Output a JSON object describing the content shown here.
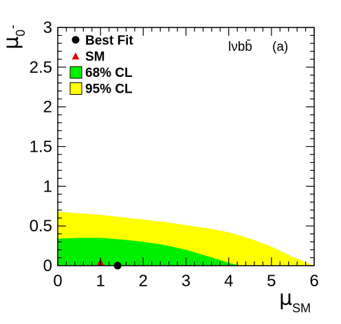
{
  "chart_data": {
    "type": "area",
    "x_range": [
      0,
      6
    ],
    "y_range": [
      0,
      3
    ],
    "xlabel": {
      "symbol": "μ",
      "subscript": "SM"
    },
    "ylabel": {
      "symbol": "μ",
      "subscript": "0",
      "superscript": "-"
    },
    "x_ticks": [
      0,
      1,
      2,
      3,
      4,
      5,
      6
    ],
    "x_tick_labels": [
      "0",
      "1",
      "2",
      "3",
      "4",
      "5",
      "6"
    ],
    "y_ticks": [
      0,
      0.5,
      1,
      1.5,
      2,
      2.5,
      3
    ],
    "y_tick_labels": [
      "0",
      "0.5",
      "1",
      "1.5",
      "2",
      "2.5",
      "3"
    ],
    "grid": false,
    "legend_placement": "top-left",
    "annotation": {
      "channel": "lνbb̄",
      "panel": "(a)"
    },
    "series": [
      {
        "name": "95% CL",
        "kind": "contour_region",
        "color": "#ffff00",
        "x": [
          0,
          0.5,
          1,
          1.5,
          2,
          2.5,
          3,
          3.5,
          4,
          4.5,
          5,
          5.5,
          6
        ],
        "y": [
          0.68,
          0.66,
          0.64,
          0.61,
          0.58,
          0.55,
          0.51,
          0.47,
          0.42,
          0.34,
          0.24,
          0.11,
          0.0
        ]
      },
      {
        "name": "68% CL",
        "kind": "contour_region",
        "color": "#00ee00",
        "x": [
          0,
          0.5,
          1,
          1.5,
          2,
          2.5,
          3,
          3.5,
          3.8,
          4.1,
          4.3
        ],
        "y": [
          0.34,
          0.35,
          0.35,
          0.33,
          0.3,
          0.26,
          0.2,
          0.12,
          0.07,
          0.02,
          0.0
        ]
      },
      {
        "name": "Best Fit",
        "kind": "marker",
        "marker": "circle",
        "color": "#000000",
        "x": 1.4,
        "y": 0.0
      },
      {
        "name": "SM",
        "kind": "marker",
        "marker": "triangle",
        "color": "#dd0000",
        "x": 1.0,
        "y": 0.0
      }
    ],
    "legend": [
      {
        "label": "Best Fit",
        "symbol": "circle",
        "color": "#000000"
      },
      {
        "label": "SM",
        "symbol": "triangle",
        "color": "#dd0000"
      },
      {
        "label": "68% CL",
        "symbol": "box",
        "color": "#00ee00"
      },
      {
        "label": "95% CL",
        "symbol": "box",
        "color": "#ffff00"
      }
    ]
  }
}
